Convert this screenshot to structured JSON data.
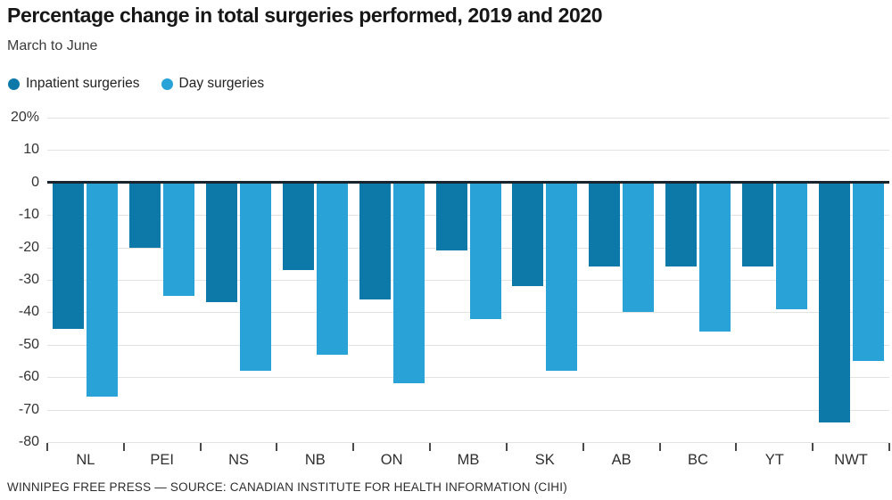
{
  "page": {
    "title": "Percentage change in total surgeries performed, 2019 and 2020",
    "subtitle": "March to June",
    "source_line": "WINNIPEG FREE PRESS — SOURCE: CANADIAN INSTITUTE FOR HEALTH INFORMATION (CIHI)"
  },
  "colors": {
    "inpatient": "#0d79a9",
    "day": "#29a3d7",
    "zero_line": "#1a242e",
    "gridline": "#e3e3e3",
    "axis_text": "#333333"
  },
  "chart_data": {
    "type": "bar",
    "title": "Percentage change in total surgeries performed, 2019 and 2020",
    "subtitle": "March to June",
    "unit": "%",
    "categories": [
      "NL",
      "PEI",
      "NS",
      "NB",
      "ON",
      "MB",
      "SK",
      "AB",
      "BC",
      "YT",
      "NWT"
    ],
    "series": [
      {
        "name": "Inpatient surgeries",
        "color": "#0d79a9",
        "values": [
          -45,
          -20,
          -37,
          -27,
          -36,
          -21,
          -32,
          -26,
          -26,
          -26,
          -74
        ]
      },
      {
        "name": "Day surgeries",
        "color": "#29a3d7",
        "values": [
          -66,
          -35,
          -58,
          -53,
          -62,
          -42,
          -58,
          -40,
          -46,
          -39,
          -55
        ]
      }
    ],
    "ylim": [
      -80,
      20
    ],
    "yticks": [
      20,
      10,
      0,
      -10,
      -20,
      -30,
      -40,
      -50,
      -60,
      -70,
      -80
    ],
    "ytick_labels": [
      "20%",
      "10",
      "0",
      "-10",
      "-20",
      "-30",
      "-40",
      "-50",
      "-60",
      "-70",
      "-80"
    ],
    "grid": true,
    "legend_position": "top-left"
  }
}
